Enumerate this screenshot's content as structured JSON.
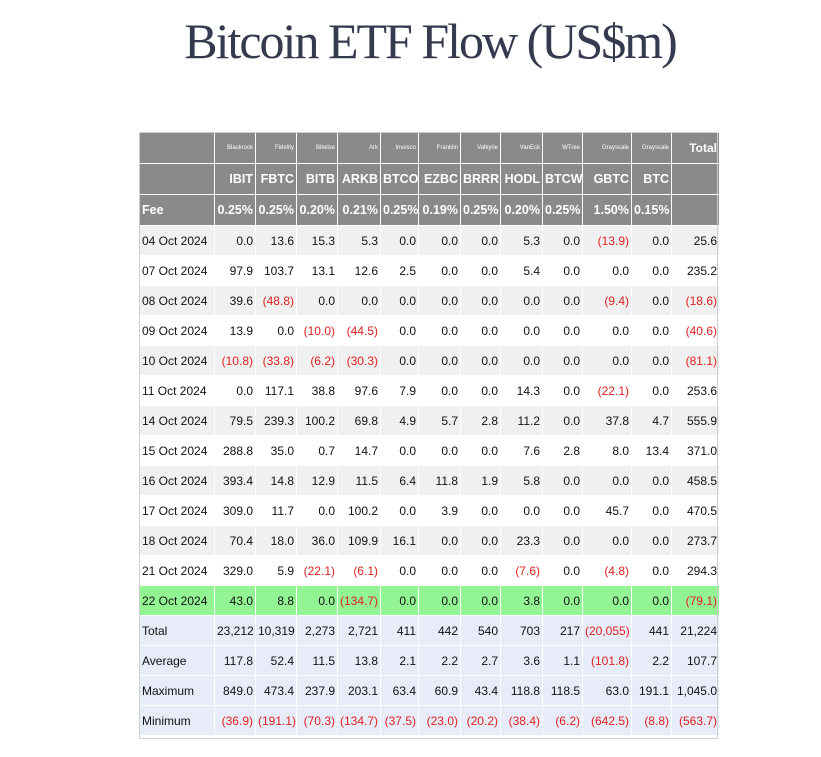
{
  "title": "Bitcoin ETF Flow (US$m)",
  "table": {
    "issuers": [
      "Blackrock",
      "Fidelity",
      "Bitwise",
      "Ark",
      "Invesco",
      "Franklin",
      "Valkyrie",
      "VanEck",
      "WTree",
      "Grayscale",
      "Grayscale"
    ],
    "total_label": "Total",
    "tickers": [
      "IBIT",
      "FBTC",
      "BITB",
      "ARKB",
      "BTCO",
      "EZBC",
      "BRRR",
      "HODL",
      "BTCW",
      "GBTC",
      "BTC"
    ],
    "fee_label": "Fee",
    "fees": [
      "0.25%",
      "0.25%",
      "0.20%",
      "0.21%",
      "0.25%",
      "0.19%",
      "0.25%",
      "0.20%",
      "0.25%",
      "1.50%",
      "0.15%"
    ],
    "rows": [
      {
        "date": "04 Oct 2024",
        "values": [
          "0.0",
          "13.6",
          "15.3",
          "5.3",
          "0.0",
          "0.0",
          "0.0",
          "5.3",
          "0.0",
          "(13.9)",
          "0.0"
        ],
        "total": "25.6"
      },
      {
        "date": "07 Oct 2024",
        "values": [
          "97.9",
          "103.7",
          "13.1",
          "12.6",
          "2.5",
          "0.0",
          "0.0",
          "5.4",
          "0.0",
          "0.0",
          "0.0"
        ],
        "total": "235.2"
      },
      {
        "date": "08 Oct 2024",
        "values": [
          "39.6",
          "(48.8)",
          "0.0",
          "0.0",
          "0.0",
          "0.0",
          "0.0",
          "0.0",
          "0.0",
          "(9.4)",
          "0.0"
        ],
        "total": "(18.6)"
      },
      {
        "date": "09 Oct 2024",
        "values": [
          "13.9",
          "0.0",
          "(10.0)",
          "(44.5)",
          "0.0",
          "0.0",
          "0.0",
          "0.0",
          "0.0",
          "0.0",
          "0.0"
        ],
        "total": "(40.6)"
      },
      {
        "date": "10 Oct 2024",
        "values": [
          "(10.8)",
          "(33.8)",
          "(6.2)",
          "(30.3)",
          "0.0",
          "0.0",
          "0.0",
          "0.0",
          "0.0",
          "0.0",
          "0.0"
        ],
        "total": "(81.1)"
      },
      {
        "date": "11 Oct 2024",
        "values": [
          "0.0",
          "117.1",
          "38.8",
          "97.6",
          "7.9",
          "0.0",
          "0.0",
          "14.3",
          "0.0",
          "(22.1)",
          "0.0"
        ],
        "total": "253.6"
      },
      {
        "date": "14 Oct 2024",
        "values": [
          "79.5",
          "239.3",
          "100.2",
          "69.8",
          "4.9",
          "5.7",
          "2.8",
          "11.2",
          "0.0",
          "37.8",
          "4.7"
        ],
        "total": "555.9"
      },
      {
        "date": "15 Oct 2024",
        "values": [
          "288.8",
          "35.0",
          "0.7",
          "14.7",
          "0.0",
          "0.0",
          "0.0",
          "7.6",
          "2.8",
          "8.0",
          "13.4"
        ],
        "total": "371.0"
      },
      {
        "date": "16 Oct 2024",
        "values": [
          "393.4",
          "14.8",
          "12.9",
          "11.5",
          "6.4",
          "11.8",
          "1.9",
          "5.8",
          "0.0",
          "0.0",
          "0.0"
        ],
        "total": "458.5"
      },
      {
        "date": "17 Oct 2024",
        "values": [
          "309.0",
          "11.7",
          "0.0",
          "100.2",
          "0.0",
          "3.9",
          "0.0",
          "0.0",
          "0.0",
          "45.7",
          "0.0"
        ],
        "total": "470.5"
      },
      {
        "date": "18 Oct 2024",
        "values": [
          "70.4",
          "18.0",
          "36.0",
          "109.9",
          "16.1",
          "0.0",
          "0.0",
          "23.3",
          "0.0",
          "0.0",
          "0.0"
        ],
        "total": "273.7"
      },
      {
        "date": "21 Oct 2024",
        "values": [
          "329.0",
          "5.9",
          "(22.1)",
          "(6.1)",
          "0.0",
          "0.0",
          "0.0",
          "(7.6)",
          "0.0",
          "(4.8)",
          "0.0"
        ],
        "total": "294.3"
      },
      {
        "date": "22 Oct 2024",
        "values": [
          "43.0",
          "8.8",
          "0.0",
          "(134.7)",
          "0.0",
          "0.0",
          "0.0",
          "3.8",
          "0.0",
          "0.0",
          "0.0"
        ],
        "total": "(79.1)",
        "highlight": true
      }
    ],
    "stats": [
      {
        "label": "Total",
        "values": [
          "23,212",
          "10,319",
          "2,273",
          "2,721",
          "411",
          "442",
          "540",
          "703",
          "217",
          "(20,055)",
          "441"
        ],
        "total": "21,224"
      },
      {
        "label": "Average",
        "values": [
          "117.8",
          "52.4",
          "11.5",
          "13.8",
          "2.1",
          "2.2",
          "2.7",
          "3.6",
          "1.1",
          "(101.8)",
          "2.2"
        ],
        "total": "107.7"
      },
      {
        "label": "Maximum",
        "values": [
          "849.0",
          "473.4",
          "237.9",
          "203.1",
          "63.4",
          "60.9",
          "43.4",
          "118.8",
          "118.5",
          "63.0",
          "191.1"
        ],
        "total": "1,045.0"
      },
      {
        "label": "Minimum",
        "values": [
          "(36.9)",
          "(191.1)",
          "(70.3)",
          "(134.7)",
          "(37.5)",
          "(23.0)",
          "(20.2)",
          "(38.4)",
          "(6.2)",
          "(642.5)",
          "(8.8)"
        ],
        "total": "(563.7)"
      }
    ],
    "colors": {
      "header_bg": "#8a8a8a",
      "row_stripe": "#f0f0f0",
      "highlight_row": "#93f493",
      "stats_bg": "#e8ecf8",
      "negative": "#e02020",
      "title": "#353a4f"
    }
  }
}
